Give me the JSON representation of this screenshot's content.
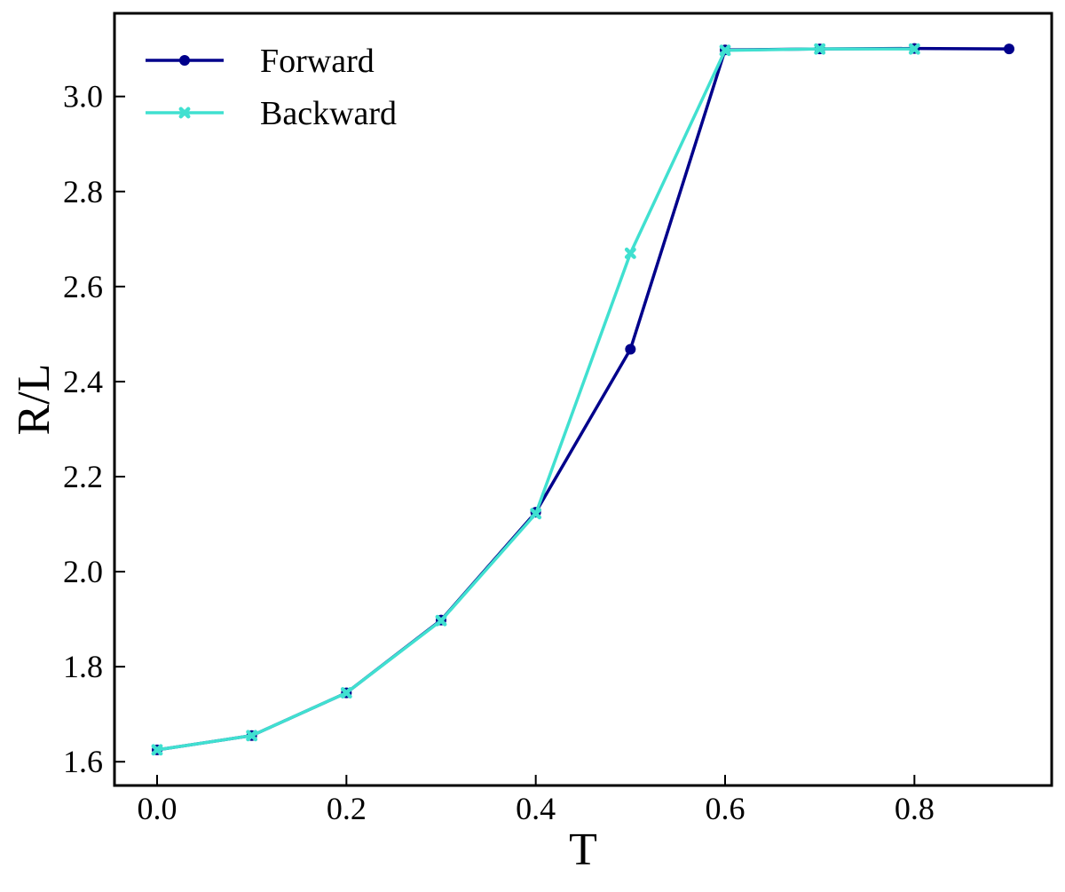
{
  "chart_data": {
    "type": "line",
    "title": "",
    "xlabel": "T",
    "ylabel": "R/L",
    "xlim": [
      -0.045,
      0.945
    ],
    "ylim": [
      1.55,
      3.175
    ],
    "xticks": [
      0.0,
      0.2,
      0.4,
      0.6,
      0.8
    ],
    "xtick_labels": [
      "0.0",
      "0.2",
      "0.4",
      "0.6",
      "0.8"
    ],
    "yticks": [
      1.6,
      1.8,
      2.0,
      2.2,
      2.4,
      2.6,
      2.8,
      3.0
    ],
    "ytick_labels": [
      "1.6",
      "1.8",
      "2.0",
      "2.2",
      "2.4",
      "2.6",
      "2.8",
      "3.0"
    ],
    "grid": false,
    "legend_position": "top-left",
    "series": [
      {
        "name": "Forward",
        "color": "#00008b",
        "marker": "circle",
        "x": [
          0.0,
          0.1,
          0.2,
          0.3,
          0.4,
          0.5,
          0.6,
          0.7,
          0.8,
          0.9
        ],
        "y": [
          1.625,
          1.655,
          1.745,
          1.898,
          2.125,
          2.468,
          3.098,
          3.1,
          3.101,
          3.1
        ]
      },
      {
        "name": "Backward",
        "color": "#40e0d0",
        "marker": "x",
        "x": [
          0.0,
          0.1,
          0.2,
          0.3,
          0.4,
          0.5,
          0.6,
          0.7,
          0.8
        ],
        "y": [
          1.625,
          1.655,
          1.745,
          1.897,
          2.122,
          2.67,
          3.097,
          3.1,
          3.1
        ]
      }
    ]
  }
}
